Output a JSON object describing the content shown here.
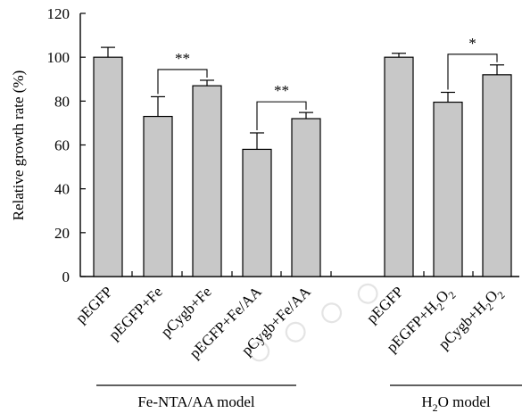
{
  "colors": {
    "bar_fill": "#c8c8c8",
    "ink": "#000000",
    "watermark": "#d9d9d9"
  },
  "chart_data": {
    "type": "bar",
    "ylabel": "Relative growth rate (%)",
    "ylim": [
      0,
      120
    ],
    "yticks": [
      "0",
      "20",
      "40",
      "60",
      "80",
      "100",
      "120"
    ],
    "categories": [
      {
        "text": "pEGFP"
      },
      {
        "text": "pEGFP+Fe"
      },
      {
        "text": "pCygb+Fe"
      },
      {
        "text": "pEGFP+Fe/AA"
      },
      {
        "text": "pCygb+Fe/AA"
      },
      {
        "text": "pEGFP"
      },
      {
        "text": "pEGFP+H",
        "sub": "2",
        "tail": "O",
        "sub2": "2"
      },
      {
        "text": "pCygb+H",
        "sub": "2",
        "tail": "O",
        "sub2": "2"
      }
    ],
    "values": [
      100,
      73,
      87,
      58,
      72,
      100,
      79.5,
      92
    ],
    "errors": [
      4.5,
      9,
      2.5,
      7.5,
      2.8,
      1.8,
      4.5,
      4.5
    ],
    "groups": [
      {
        "label": "Fe-NTA/AA model"
      },
      {
        "label_pre": "H",
        "label_sub": "2",
        "label_post": "O model"
      }
    ],
    "significance": [
      {
        "from": 1,
        "to": 2,
        "label": "**"
      },
      {
        "from": 3,
        "to": 4,
        "label": "**"
      },
      {
        "from": 6,
        "to": 7,
        "label": "*"
      }
    ]
  }
}
